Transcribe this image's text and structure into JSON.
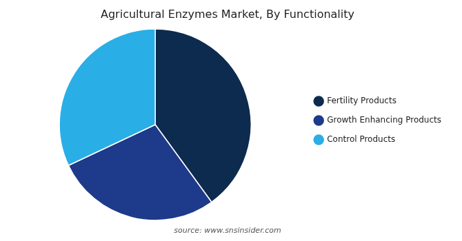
{
  "chart_data": {
    "type": "pie",
    "title": "Agricultural Enzymes Market, By Functionality",
    "categories": [
      "Fertility Products",
      "Growth Enhancing Products",
      "Control Products"
    ],
    "values": [
      40,
      28,
      32
    ],
    "colors": [
      "#0d2b4e",
      "#1e3a8a",
      "#29aee6"
    ],
    "legend": "right",
    "annotation": "source: www.snsinsider.com"
  }
}
